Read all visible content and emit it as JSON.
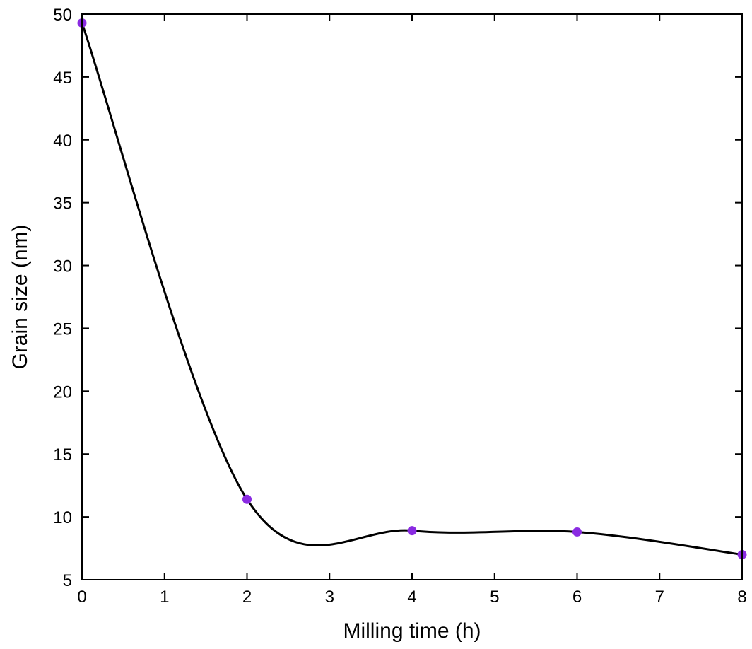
{
  "chart_data": {
    "type": "line",
    "xlabel": "Milling time (h)",
    "ylabel": "Grain size (nm)",
    "xlim": [
      0,
      8
    ],
    "ylim": [
      5,
      50
    ],
    "x_ticks": [
      "0",
      "1",
      "2",
      "3",
      "4",
      "5",
      "6",
      "7",
      "8"
    ],
    "y_ticks": [
      "5",
      "10",
      "15",
      "20",
      "25",
      "30",
      "35",
      "40",
      "45",
      "50"
    ],
    "grid": false,
    "legend": "none",
    "series": [
      {
        "x": [
          0,
          2,
          4,
          6,
          8
        ],
        "y": [
          49.3,
          11.4,
          8.9,
          8.8,
          7.0
        ],
        "marker_color": "#8a2be2",
        "line_color": "#000000",
        "curve": "smooth"
      }
    ]
  }
}
